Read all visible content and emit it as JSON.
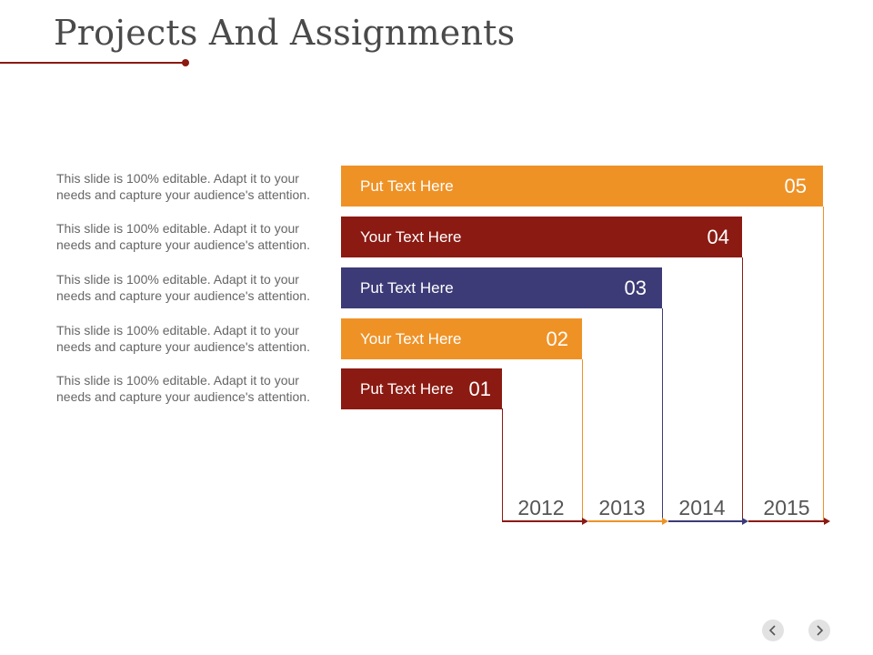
{
  "title": "Projects And Assignments",
  "descriptions": [
    "This slide is 100% editable. Adapt it to your needs and capture your audience's attention.",
    "This slide is 100% editable. Adapt it to your needs and capture your audience's attention.",
    "This slide is 100% editable. Adapt it to your needs and capture your audience's attention.",
    "This slide is 100% editable. Adapt it to your needs and capture your audience's attention.",
    "This slide is 100% editable. Adapt it to your needs and capture your audience's attention."
  ],
  "bars": [
    {
      "label": "Put Text Here",
      "number": "05",
      "color": "#ef9226"
    },
    {
      "label": "Your Text Here",
      "number": "04",
      "color": "#8b1a12"
    },
    {
      "label": "Put Text Here",
      "number": "03",
      "color": "#3c3b77"
    },
    {
      "label": "Your Text Here",
      "number": "02",
      "color": "#ef9226"
    },
    {
      "label": "Put Text Here",
      "number": "01",
      "color": "#8b1a12"
    }
  ],
  "years": [
    "2012",
    "2013",
    "2014",
    "2015"
  ],
  "colors": {
    "accent_dark_red": "#8b1a12",
    "accent_orange": "#ef9226",
    "accent_navy": "#3c3b77",
    "title_text": "#4a4a4a",
    "body_text": "#666666"
  },
  "nav": {
    "prev_icon": "chevron-left-icon",
    "next_icon": "chevron-right-icon"
  }
}
